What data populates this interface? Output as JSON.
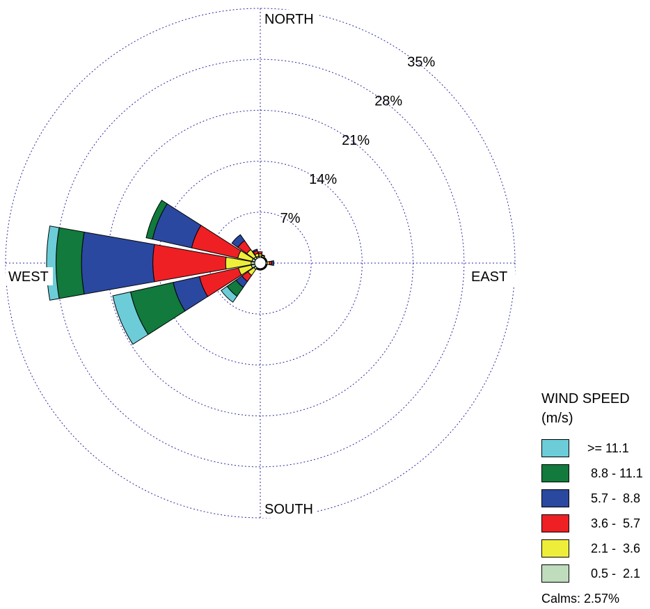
{
  "chart_data": {
    "type": "windrose",
    "directions": [
      "N",
      "NNE",
      "NE",
      "ENE",
      "E",
      "ESE",
      "SE",
      "SSE",
      "S",
      "SSW",
      "SW",
      "WSW",
      "W",
      "WNW",
      "NW",
      "NNW"
    ],
    "direction_labels": {
      "north": "NORTH",
      "east": "EAST",
      "south": "SOUTH",
      "west": "WEST"
    },
    "ring_values": [
      7,
      14,
      21,
      28,
      35
    ],
    "ring_labels": [
      "7%",
      "14%",
      "21%",
      "28%",
      "35%"
    ],
    "radial_max": 35,
    "legend": {
      "title_line1": "WIND SPEED",
      "title_line2": "(m/s)",
      "bins": [
        {
          "label": ">= 11.1",
          "color": "#6cccd8"
        },
        {
          "label": " 8.8 - 11.1",
          "color": "#117a3c"
        },
        {
          "label": " 5.7 -  8.8",
          "color": "#2b48a0"
        },
        {
          "label": " 3.6 -  5.7",
          "color": "#ee2024"
        },
        {
          "label": " 2.1 -  3.6",
          "color": "#eeee3a"
        },
        {
          "label": " 0.5 -  2.1",
          "color": "#bfdcbc"
        }
      ]
    },
    "calms": "Calms: 2.57%",
    "series_bins": [
      "0.5-2.1",
      "2.1-3.6",
      "3.6-5.7",
      "5.7-8.8",
      "8.8-11.1",
      ">=11.1"
    ],
    "frequencies_percent": {
      "N": [
        0.2,
        0.3,
        0.3,
        0.0,
        0.0,
        0.0
      ],
      "NNE": [
        0.1,
        0.2,
        0.1,
        0.0,
        0.0,
        0.0
      ],
      "NE": [
        0.1,
        0.1,
        0.0,
        0.0,
        0.0,
        0.0
      ],
      "ENE": [
        0.1,
        0.1,
        0.0,
        0.0,
        0.0,
        0.0
      ],
      "E": [
        0.2,
        0.3,
        0.3,
        0.3,
        0.0,
        0.0
      ],
      "ESE": [
        0.1,
        0.1,
        0.0,
        0.0,
        0.0,
        0.0
      ],
      "SE": [
        0.1,
        0.1,
        0.0,
        0.0,
        0.0,
        0.0
      ],
      "SSE": [
        0.1,
        0.1,
        0.0,
        0.0,
        0.0,
        0.0
      ],
      "S": [
        0.1,
        0.1,
        0.0,
        0.0,
        0.0,
        0.0
      ],
      "SSW": [
        0.1,
        0.1,
        0.0,
        0.0,
        0.0,
        0.0
      ],
      "SW": [
        0.3,
        1.0,
        1.0,
        1.0,
        1.5,
        1.0
      ],
      "WSW": [
        0.5,
        1.8,
        5.5,
        3.7,
        6.0,
        2.5
      ],
      "W": [
        0.5,
        3.5,
        10.0,
        9.8,
        3.5,
        1.3
      ],
      "WNW": [
        0.4,
        2.0,
        6.5,
        5.5,
        0.9,
        0.0
      ],
      "NW": [
        0.3,
        1.2,
        1.5,
        1.0,
        0.0,
        0.0
      ],
      "NNW": [
        0.2,
        0.4,
        0.4,
        0.2,
        0.0,
        0.0
      ]
    }
  }
}
